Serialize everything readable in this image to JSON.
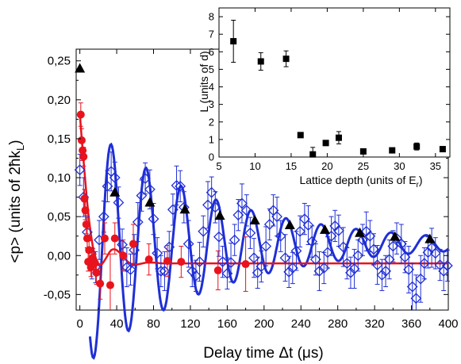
{
  "chart_data": [
    {
      "type": "scatter",
      "xlabel": "Delay time Δt (μs)",
      "ylabel": "<p> (units of 2ħk_L)",
      "xlim": [
        -4,
        400
      ],
      "ylim": [
        -0.07,
        0.265
      ],
      "x_ticks": [
        "0",
        "40",
        "80",
        "120",
        "160",
        "200",
        "240",
        "280",
        "320",
        "360",
        "400"
      ],
      "y_ticks": [
        "-0,05",
        "0,00",
        "0,05",
        "0,10",
        "0,15",
        "0,20",
        "0,25"
      ],
      "colors": {
        "red": "#e8131c",
        "blue": "#1f2fd6",
        "black": "#000000"
      },
      "series": [
        {
          "marker": "filled-circle-red",
          "x": [
            1,
            2,
            3,
            4,
            5,
            6,
            7,
            8,
            9,
            10,
            12,
            14,
            16,
            18,
            22,
            27,
            33,
            38,
            47,
            58,
            75,
            95,
            110,
            150,
            180
          ],
          "y": [
            0.181,
            0.148,
            0.135,
            0.127,
            0.073,
            0.058,
            0.04,
            0.022,
            -0.008,
            0.007,
            -0.015,
            -0.003,
            -0.01,
            -0.022,
            -0.036,
            0.022,
            -0.038,
            0.022,
            0.0,
            0.015,
            -0.005,
            -0.007,
            -0.008,
            -0.019,
            -0.011
          ],
          "err": [
            0.015,
            0.015,
            0.013,
            0.012,
            0.012,
            0.012,
            0.012,
            0.012,
            0.012,
            0.012,
            0.012,
            0.012,
            0.012,
            0.015,
            0.02,
            0.02,
            0.04,
            0.02,
            0.02,
            0.025,
            0.02,
            0.02,
            0.02,
            0.025,
            0.035
          ]
        },
        {
          "marker": "open-diamond-blue",
          "x": [
            0,
            4,
            8,
            13,
            17,
            21,
            26,
            30,
            34,
            38,
            42,
            46,
            51,
            55,
            59,
            63,
            67,
            71,
            76,
            80,
            84,
            88,
            92,
            97,
            101,
            105,
            109,
            113,
            118,
            122,
            126,
            130,
            134,
            139,
            143,
            147,
            151,
            155,
            160,
            164,
            168,
            172,
            176,
            181,
            185,
            189,
            193,
            197,
            202,
            206,
            210,
            214,
            218,
            223,
            227,
            231,
            235,
            239,
            244,
            248,
            252,
            256,
            260,
            265,
            269,
            273,
            277,
            281,
            286,
            290,
            294,
            298,
            302,
            307,
            311,
            315,
            319,
            323,
            328,
            332,
            336,
            340,
            344,
            349,
            353,
            357,
            361,
            365,
            370,
            374,
            378,
            382,
            386,
            391,
            395,
            399
          ],
          "y": [
            0.11,
            0.075,
            0.03,
            -0.01,
            -0.015,
            0.02,
            0.05,
            0.089,
            0.108,
            0.1,
            0.068,
            0.014,
            -0.015,
            -0.018,
            0.007,
            0.043,
            0.077,
            0.099,
            0.085,
            0.047,
            0.003,
            -0.02,
            -0.02,
            0.011,
            0.059,
            0.09,
            0.089,
            0.062,
            0.015,
            -0.02,
            -0.026,
            -0.008,
            0.031,
            0.065,
            0.081,
            0.062,
            0.024,
            -0.008,
            -0.023,
            -0.009,
            0.02,
            0.052,
            0.067,
            0.058,
            0.029,
            -0.003,
            -0.022,
            -0.014,
            0.012,
            0.04,
            0.058,
            0.05,
            0.025,
            -0.003,
            -0.021,
            -0.016,
            0.006,
            0.031,
            0.047,
            0.039,
            0.018,
            -0.005,
            -0.02,
            -0.016,
            0.004,
            0.025,
            0.038,
            0.032,
            0.011,
            -0.01,
            -0.022,
            -0.017,
            0.0,
            0.02,
            0.031,
            0.025,
            0.008,
            -0.012,
            -0.025,
            -0.02,
            -0.005,
            0.012,
            0.022,
            0.015,
            -0.002,
            -0.018,
            -0.04,
            -0.055,
            -0.03,
            -0.01,
            0.004,
            0.01,
            0.003,
            -0.012,
            -0.02,
            -0.013
          ],
          "err": [
            0.02,
            0.025,
            0.02,
            0.02,
            0.02,
            0.025,
            0.02,
            0.02,
            0.025,
            0.02,
            0.02,
            0.02,
            0.025,
            0.02,
            0.02,
            0.025,
            0.02,
            0.02,
            0.025,
            0.02,
            0.02,
            0.02,
            0.025,
            0.02,
            0.02,
            0.025,
            0.02,
            0.02,
            0.03,
            0.02,
            0.02,
            0.025,
            0.02,
            0.03,
            0.02,
            0.02,
            0.025,
            0.02,
            0.02,
            0.025,
            0.02,
            0.02,
            0.025,
            0.02,
            0.02,
            0.025,
            0.02,
            0.02,
            0.025,
            0.02,
            0.02,
            0.025,
            0.02,
            0.03,
            0.02,
            0.02,
            0.025,
            0.02,
            0.02,
            0.025,
            0.02,
            0.02,
            0.025,
            0.02,
            0.02,
            0.025,
            0.02,
            0.02,
            0.025,
            0.02,
            0.02,
            0.025,
            0.02,
            0.02,
            0.025,
            0.02,
            0.02,
            0.025,
            0.02,
            0.02,
            0.025,
            0.02,
            0.02,
            0.025,
            0.02,
            0.03,
            0.03,
            0.03,
            0.03,
            0.02,
            0.02,
            0.025,
            0.02,
            0.02,
            0.025,
            0.02
          ]
        },
        {
          "marker": "filled-triangle-black",
          "x": [
            0,
            38,
            76,
            114,
            152,
            190,
            228,
            266,
            304,
            342,
            380
          ],
          "y": [
            0.24,
            0.081,
            0.068,
            0.059,
            0.051,
            0.045,
            0.039,
            0.033,
            0.029,
            0.024,
            0.021
          ]
        },
        {
          "style": "line-red",
          "x": [
            0,
            2,
            4,
            6,
            8,
            10,
            12,
            14,
            16,
            18,
            20,
            22,
            24,
            26,
            28,
            30,
            32,
            34,
            36,
            38,
            40,
            44,
            48,
            52,
            56,
            60,
            64,
            68,
            72,
            80,
            90,
            100,
            120,
            160,
            200,
            240,
            280,
            320,
            360,
            400
          ],
          "y": [
            0.182,
            0.15,
            0.122,
            0.094,
            0.068,
            0.045,
            0.027,
            0.012,
            0.001,
            -0.006,
            -0.01,
            -0.012,
            -0.011,
            -0.008,
            -0.004,
            0.0,
            0.004,
            0.007,
            0.008,
            0.008,
            0.007,
            0.003,
            -0.003,
            -0.008,
            -0.011,
            -0.012,
            -0.011,
            -0.01,
            -0.009,
            -0.009,
            -0.01,
            -0.01,
            -0.01,
            -0.01,
            -0.01,
            -0.01,
            -0.01,
            -0.01,
            -0.01,
            -0.01
          ]
        },
        {
          "style": "line-blue-damped-oscillation",
          "x0": 11,
          "x1": 400,
          "amp": 0.163,
          "tau": 140,
          "period": 38,
          "offset": 0.027,
          "phase_x": 34
        }
      ]
    },
    {
      "type": "scatter",
      "inset": true,
      "xlabel": "Lattice depth (units of E",
      "xlabel_sub": "r",
      "xlabel_end": ")",
      "ylabel": "L (units of d)",
      "xlim": [
        5,
        37
      ],
      "ylim": [
        0,
        8.5
      ],
      "x_ticks": [
        "5",
        "10",
        "15",
        "20",
        "25",
        "30",
        "35"
      ],
      "y_ticks": [
        "0",
        "1",
        "2",
        "3",
        "4",
        "5",
        "6",
        "7",
        "8"
      ],
      "x": [
        7,
        10.8,
        14.3,
        16.3,
        18,
        19.8,
        21.6,
        25,
        29,
        32.4,
        36
      ],
      "y": [
        6.6,
        5.45,
        5.6,
        1.25,
        0.15,
        0.8,
        1.1,
        0.32,
        0.38,
        0.6,
        0.45
      ],
      "err": [
        1.2,
        0.5,
        0.45,
        0.1,
        0.4,
        0.15,
        0.35,
        0.05,
        0.05,
        0.2,
        0.05
      ]
    }
  ]
}
